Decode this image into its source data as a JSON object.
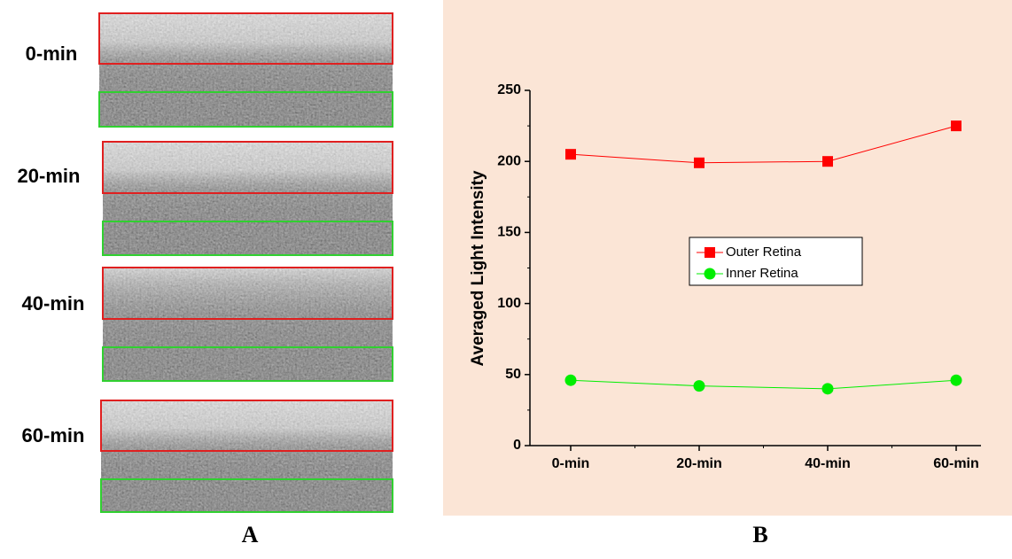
{
  "panel_a": {
    "labels": [
      "0-min",
      "20-min",
      "40-min",
      "60-min"
    ]
  },
  "panel_labels": [
    "A",
    "B"
  ],
  "chart_data": {
    "type": "line",
    "y_label": "Averaged Light Intensity",
    "categories": [
      "0-min",
      "20-min",
      "40-min",
      "60-min"
    ],
    "series": [
      {
        "name": "Outer Retina",
        "color": "#ff0000",
        "marker": "square",
        "values": [
          205,
          199,
          200,
          225
        ]
      },
      {
        "name": "Inner Retina",
        "color": "#00ee00",
        "marker": "circle",
        "values": [
          46,
          42,
          40,
          46
        ]
      }
    ],
    "ylim": [
      0,
      250
    ],
    "yticks": [
      0,
      50,
      100,
      150,
      200,
      250
    ]
  }
}
